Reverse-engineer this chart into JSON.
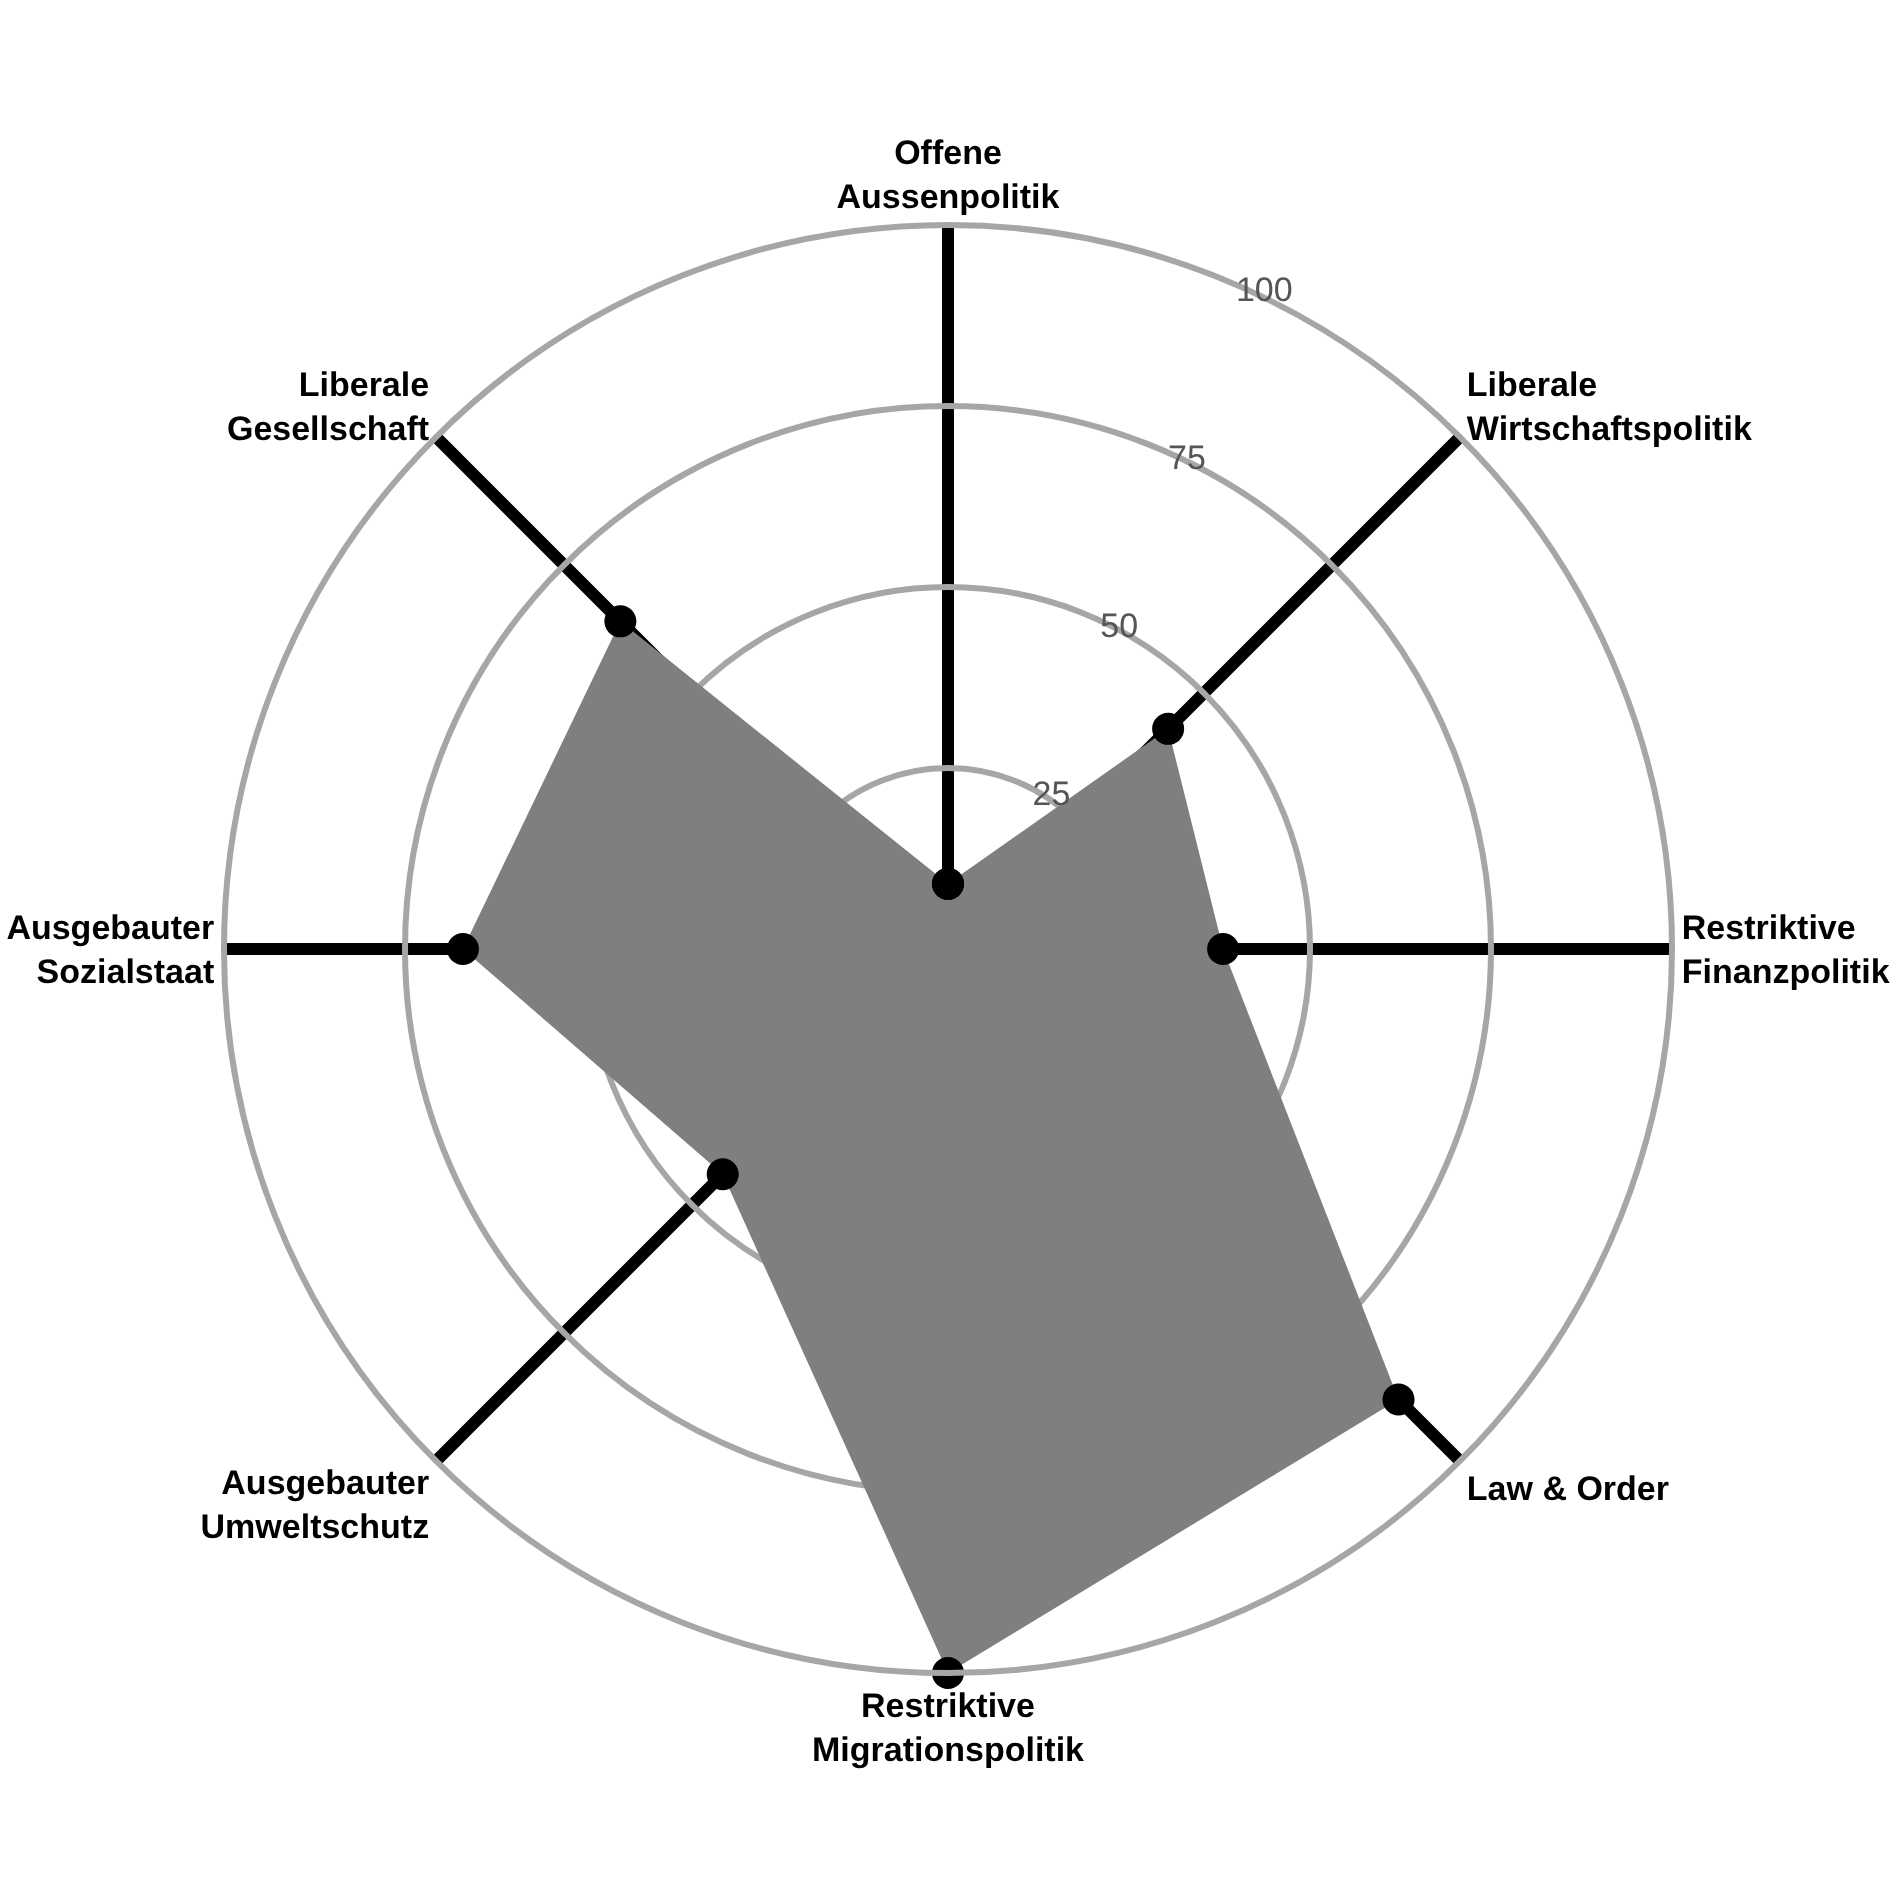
{
  "chart_data": {
    "type": "radar",
    "categories": [
      "Offene\nAussenpolitik",
      "Liberale\nWirtschaftspolitik",
      "Restriktive\nFinanzpolitik",
      "Law & Order",
      "Restriktive\nMigrationspolitik",
      "Ausgebauter\nUmweltschutz",
      "Ausgebauter\nSozialstaat",
      "Liberale\nGesellschaft"
    ],
    "series": [
      {
        "color": "#7f7f7f",
        "values": [
          9,
          43,
          38,
          88,
          100,
          44,
          67,
          64
        ]
      }
    ],
    "ylim": [
      0,
      100
    ],
    "yticks": [
      25,
      50,
      75,
      100
    ],
    "grid": true,
    "marker": "circle"
  }
}
